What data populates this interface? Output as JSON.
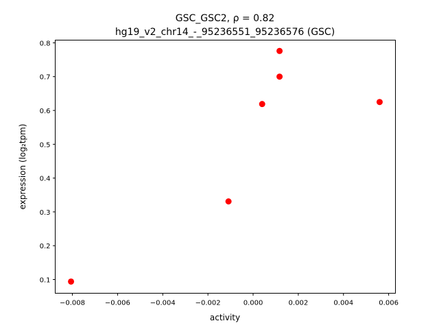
{
  "chart_data": {
    "type": "scatter",
    "title_line1": "GSC_GSC2, ρ = 0.82",
    "title_line2": "hg19_v2_chr14_-_95236551_95236576 (GSC)",
    "xlabel": "activity",
    "ylabel": "expression (log₂tpm)",
    "xlim": [
      -0.00876,
      0.0063
    ],
    "ylim": [
      0.0594,
      0.808
    ],
    "xticks": [
      -0.008,
      -0.006,
      -0.004,
      -0.002,
      0.0,
      0.002,
      0.004,
      0.006
    ],
    "xtick_labels": [
      "−0.008",
      "−0.006",
      "−0.004",
      "−0.002",
      "0.000",
      "0.002",
      "0.004",
      "0.006"
    ],
    "yticks": [
      0.1,
      0.2,
      0.3,
      0.4,
      0.5,
      0.6,
      0.7,
      0.8
    ],
    "ytick_labels": [
      "0.1",
      "0.2",
      "0.3",
      "0.4",
      "0.5",
      "0.6",
      "0.7",
      "0.8"
    ],
    "grid": false,
    "marker_color": "#ff0000",
    "points": [
      {
        "x": -0.00806,
        "y": 0.094
      },
      {
        "x": -0.00109,
        "y": 0.331
      },
      {
        "x": 0.0004,
        "y": 0.619
      },
      {
        "x": 0.00117,
        "y": 0.7
      },
      {
        "x": 0.00117,
        "y": 0.776
      },
      {
        "x": 0.0056,
        "y": 0.625
      }
    ]
  }
}
